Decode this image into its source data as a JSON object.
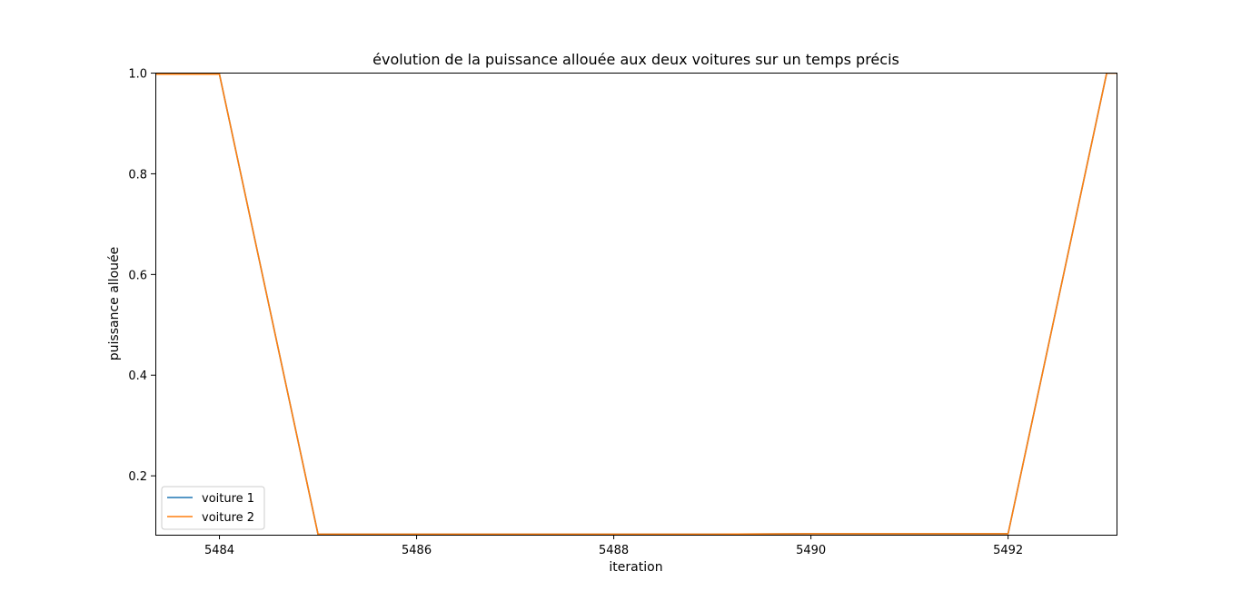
{
  "chart_data": {
    "type": "line",
    "title": "évolution de la puissance allouée aux deux voitures sur un temps précis",
    "xlabel": "iteration",
    "ylabel": "puissance allouée",
    "xlim": [
      5483.35,
      5493.1
    ],
    "ylim": [
      0.083,
      1.001
    ],
    "xticks": [
      5484,
      5486,
      5488,
      5490,
      5492
    ],
    "xtick_labels": [
      "5484",
      "5486",
      "5488",
      "5490",
      "5492"
    ],
    "yticks": [
      0.2,
      0.4,
      0.6,
      0.8,
      1.0
    ],
    "ytick_labels": [
      "0.2",
      "0.4",
      "0.6",
      "0.8",
      "1.0"
    ],
    "grid": false,
    "legend_position": "lower-left",
    "series": [
      {
        "name": "voiture 1",
        "color": "#1f77b4",
        "x": [
          5483,
          5484,
          5485,
          5486,
          5487,
          5488,
          5489,
          5490,
          5491,
          5492,
          5493,
          5494
        ],
        "y": [
          0.998,
          0.998,
          0.084,
          0.084,
          0.084,
          0.084,
          0.084,
          0.085,
          0.085,
          0.085,
          1.0,
          1.0
        ]
      },
      {
        "name": "voiture 2",
        "color": "#ff7f0e",
        "x": [
          5483,
          5484,
          5485,
          5486,
          5487,
          5488,
          5489,
          5490,
          5491,
          5492,
          5493,
          5494
        ],
        "y": [
          0.998,
          0.998,
          0.084,
          0.084,
          0.084,
          0.084,
          0.084,
          0.085,
          0.085,
          0.085,
          1.0,
          1.0
        ]
      }
    ]
  }
}
